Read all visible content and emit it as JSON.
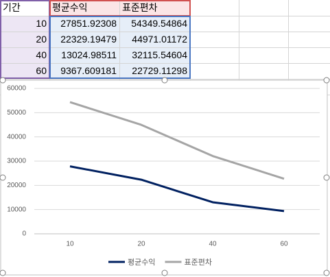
{
  "sheet": {
    "headers": [
      "기간",
      "평균수익",
      "표준편차"
    ],
    "rows": [
      [
        10,
        27851.92308,
        54349.54864
      ],
      [
        20,
        22329.19479,
        44971.01172
      ],
      [
        40,
        13024.98511,
        32115.54604
      ],
      [
        60,
        9367.609181,
        22729.11298
      ]
    ]
  },
  "chart_data": {
    "type": "line",
    "categories": [
      "10",
      "20",
      "40",
      "60"
    ],
    "series": [
      {
        "name": "평균수익",
        "color": "#002060",
        "values": [
          27851.92308,
          22329.19479,
          13024.98511,
          9367.609181
        ]
      },
      {
        "name": "표준편차",
        "color": "#a5a5a5",
        "values": [
          54349.54864,
          44971.01172,
          32115.54604,
          22729.11298
        ]
      }
    ],
    "ylim": [
      0,
      60000
    ],
    "yticks": [
      0,
      10000,
      20000,
      30000,
      40000,
      50000,
      60000
    ],
    "grid": true,
    "legend": "bottom"
  }
}
